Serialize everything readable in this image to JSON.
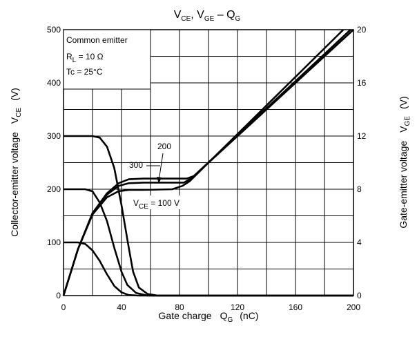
{
  "chart_data": {
    "type": "line",
    "title": {
      "main": "V",
      "sub1": "CE",
      "mid": ", V",
      "sub2": "GE",
      "dash": " – Q",
      "sub3": "G"
    },
    "xlabel": {
      "text": "Gate charge",
      "sym": "Q",
      "sub": "G",
      "unit": "(nC)"
    },
    "ylabel_left": {
      "text": "Collector-emitter voltage",
      "sym": "V",
      "sub": "CE",
      "unit": "(V)"
    },
    "ylabel_right": {
      "text": "Gate-emitter voltage",
      "sym": "V",
      "sub": "GE",
      "unit": "(V)"
    },
    "xlim": [
      0,
      200
    ],
    "ylim_left": [
      0,
      500
    ],
    "ylim_right": [
      0,
      20
    ],
    "x_ticks": [
      "0",
      "40",
      "80",
      "120",
      "160",
      "200"
    ],
    "y_left_ticks": [
      "0",
      "100",
      "200",
      "300",
      "400",
      "500"
    ],
    "y_right_ticks": [
      "0",
      "4",
      "8",
      "12",
      "16",
      "20"
    ],
    "grid": true,
    "conditions": {
      "line1": "Common emitter",
      "line2": {
        "pre": "R",
        "sub": "L",
        "post": " = 10 Ω"
      },
      "line3": "Tc = 25°C"
    },
    "annotations": {
      "v300": "300",
      "v200": "200",
      "v100": {
        "pre": "V",
        "sub": "CE",
        "post": " = 100 V"
      }
    },
    "series_vce": [
      {
        "vce": 300,
        "points": [
          [
            0,
            300
          ],
          [
            20,
            300
          ],
          [
            25,
            297
          ],
          [
            30,
            280
          ],
          [
            35,
            240
          ],
          [
            40,
            170
          ],
          [
            45,
            90
          ],
          [
            48,
            45
          ],
          [
            52,
            15
          ],
          [
            58,
            3
          ],
          [
            65,
            0
          ],
          [
            200,
            0
          ]
        ]
      },
      {
        "vce": 200,
        "points": [
          [
            0,
            200
          ],
          [
            15,
            200
          ],
          [
            20,
            196
          ],
          [
            25,
            175
          ],
          [
            30,
            140
          ],
          [
            35,
            90
          ],
          [
            40,
            45
          ],
          [
            44,
            20
          ],
          [
            50,
            5
          ],
          [
            58,
            0
          ],
          [
            200,
            0
          ]
        ]
      },
      {
        "vce": 100,
        "points": [
          [
            0,
            100
          ],
          [
            10,
            100
          ],
          [
            15,
            97
          ],
          [
            20,
            85
          ],
          [
            25,
            65
          ],
          [
            30,
            40
          ],
          [
            35,
            18
          ],
          [
            40,
            6
          ],
          [
            45,
            1
          ],
          [
            52,
            0
          ],
          [
            200,
            0
          ]
        ]
      }
    ],
    "series_vge": [
      {
        "vce": 300,
        "points": [
          [
            0,
            0
          ],
          [
            10,
            3.5
          ],
          [
            20,
            6.2
          ],
          [
            30,
            7.7
          ],
          [
            38,
            8.45
          ],
          [
            45,
            8.75
          ],
          [
            55,
            8.8
          ],
          [
            85,
            8.8
          ],
          [
            90,
            9.0
          ],
          [
            200,
            20.0
          ]
        ]
      },
      {
        "vce": 200,
        "points": [
          [
            0,
            0
          ],
          [
            10,
            3.5
          ],
          [
            20,
            6.2
          ],
          [
            30,
            7.6
          ],
          [
            38,
            8.25
          ],
          [
            45,
            8.45
          ],
          [
            55,
            8.5
          ],
          [
            83,
            8.5
          ],
          [
            88,
            8.8
          ],
          [
            198,
            20.0
          ]
        ]
      },
      {
        "vce": 100,
        "points": [
          [
            0,
            0
          ],
          [
            10,
            3.5
          ],
          [
            20,
            6.1
          ],
          [
            30,
            7.4
          ],
          [
            38,
            7.85
          ],
          [
            45,
            7.95
          ],
          [
            55,
            7.95
          ],
          [
            75,
            8.0
          ],
          [
            82,
            8.25
          ],
          [
            87,
            8.6
          ],
          [
            193,
            20.0
          ]
        ]
      }
    ]
  }
}
